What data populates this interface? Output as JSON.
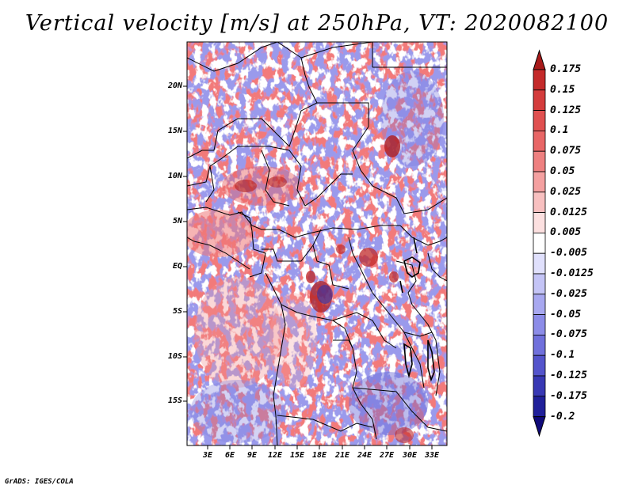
{
  "title": "Vertical velocity [m/s] at 250hPa, VT: 2020082100",
  "credit": "GrADS: IGES/COLA",
  "lat_labels": [
    "20N",
    "15N",
    "10N",
    "5N",
    "EQ",
    "5S",
    "10S",
    "15S"
  ],
  "lon_labels": [
    "3E",
    "6E",
    "9E",
    "12E",
    "15E",
    "18E",
    "21E",
    "24E",
    "27E",
    "30E",
    "33E"
  ],
  "colorbar": {
    "labels": [
      "0.175",
      "0.15",
      "0.125",
      "0.1",
      "0.075",
      "0.05",
      "0.025",
      "0.0125",
      "0.005",
      "-0.005",
      "-0.0125",
      "-0.025",
      "-0.05",
      "-0.075",
      "-0.1",
      "-0.125",
      "-0.175",
      "-0.2"
    ],
    "colors": [
      "#a81a1a",
      "#c42a2a",
      "#d43c3c",
      "#e05050",
      "#e86666",
      "#ee8080",
      "#f4a0a0",
      "#f8c0c0",
      "#fce0e0",
      "#ffffff",
      "#e0e0fc",
      "#c4c4f6",
      "#a8a8f0",
      "#8c8ce8",
      "#7070dc",
      "#5454cc",
      "#3838b4",
      "#20209a",
      "#100a7a"
    ]
  }
}
